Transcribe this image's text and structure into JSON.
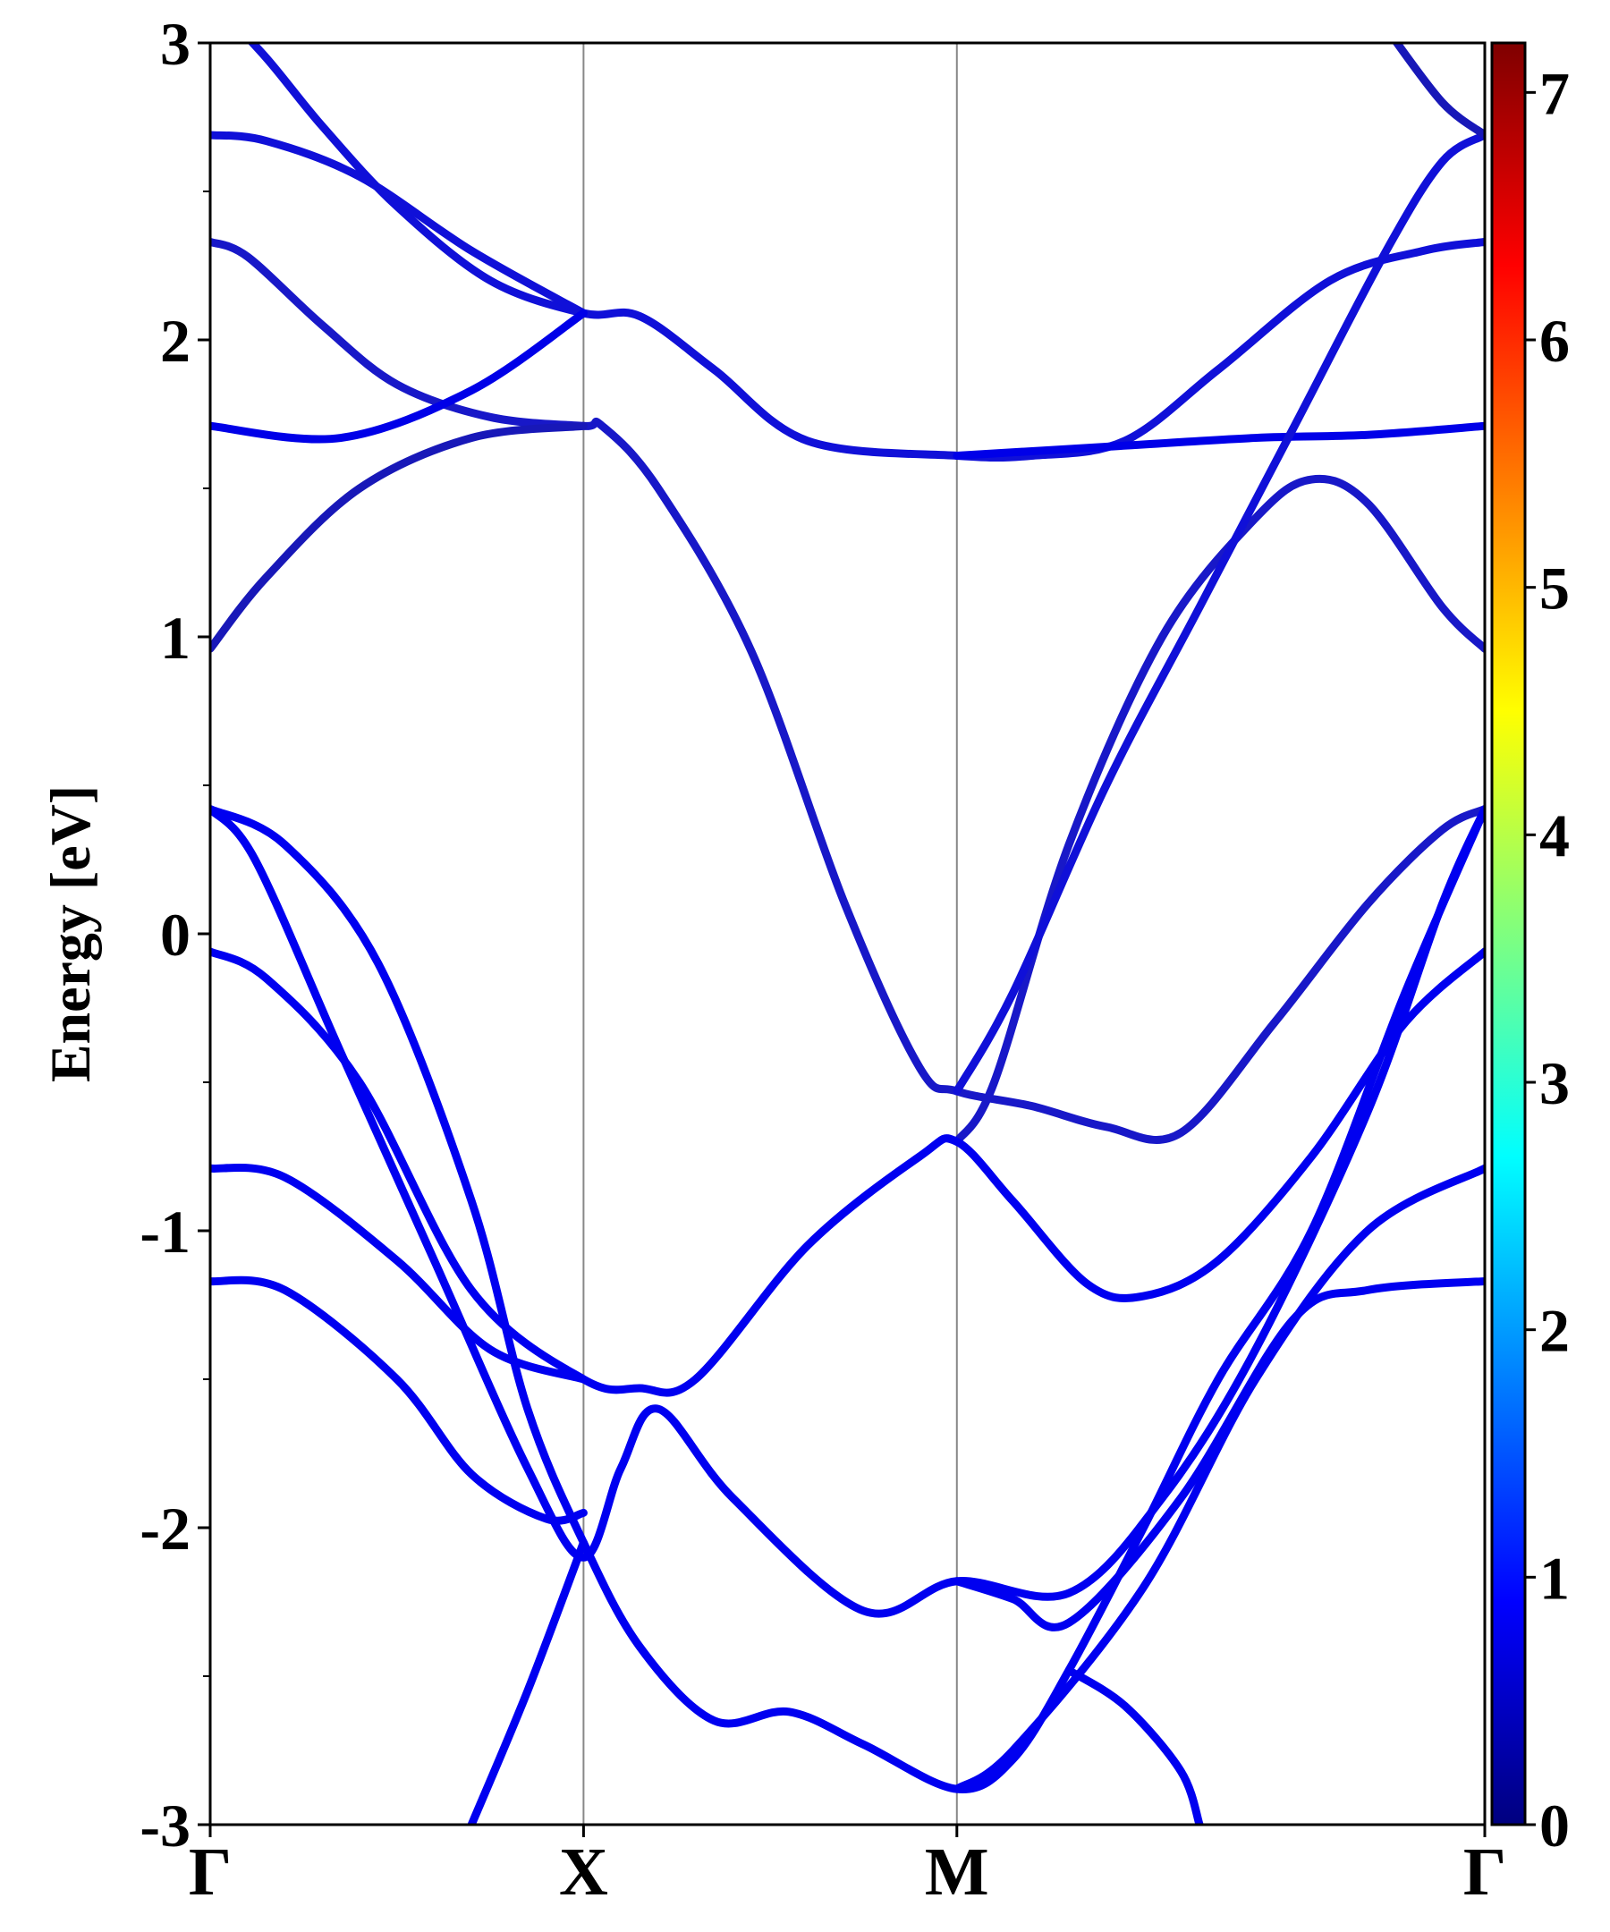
{
  "chart_data": {
    "type": "line",
    "title": "",
    "ylabel": "Energy [eV]",
    "xlabel": "",
    "ylim": [
      -3,
      3
    ],
    "yticks": [
      -3,
      -2,
      -1,
      0,
      1,
      2,
      3
    ],
    "ytick_labels": [
      "-3",
      "-2",
      "-1",
      "0",
      "1",
      "2",
      "3"
    ],
    "k_points": [
      {
        "label": "Γ",
        "x": 0
      },
      {
        "label": "X",
        "x": 1
      },
      {
        "label": "M",
        "x": 2
      },
      {
        "label": "Γ",
        "x": 3.414
      }
    ],
    "xlim": [
      0,
      3.414
    ],
    "grid": false,
    "vertical_lines_at_k_points": true,
    "colorbar": {
      "range": [
        0,
        7.2
      ],
      "ticks": [
        0,
        1,
        2,
        3,
        4,
        5,
        6,
        7
      ],
      "tick_labels": [
        "0",
        "1",
        "2",
        "3",
        "4",
        "5",
        "6",
        "7"
      ],
      "colormap": "jet",
      "colors": [
        "#00007f",
        "#0000ff",
        "#007fff",
        "#00ffff",
        "#7fff7f",
        "#ffff00",
        "#ff7f00",
        "#ff0000",
        "#7f0000"
      ]
    },
    "series": [
      {
        "color": "#1010d8",
        "points": [
          [
            0,
            3.15
          ],
          [
            0.15,
            2.95
          ],
          [
            0.3,
            2.72
          ],
          [
            0.5,
            2.45
          ],
          [
            0.75,
            2.2
          ],
          [
            1,
            2.09
          ],
          [
            1.15,
            2.08
          ],
          [
            1.35,
            1.9
          ],
          [
            1.6,
            1.66
          ],
          [
            2,
            1.61
          ],
          [
            2.2,
            1.61
          ],
          [
            2.45,
            1.66
          ],
          [
            2.7,
            1.9
          ],
          [
            3.0,
            2.2
          ],
          [
            3.25,
            2.3
          ],
          [
            3.414,
            2.33
          ]
        ]
      },
      {
        "color": "#1818c8",
        "points": [
          [
            0,
            2.33
          ],
          [
            0.1,
            2.28
          ],
          [
            0.3,
            2.05
          ],
          [
            0.5,
            1.85
          ],
          [
            0.75,
            1.74
          ],
          [
            1,
            1.71
          ],
          [
            1.05,
            1.71
          ],
          [
            1.2,
            1.5
          ],
          [
            1.45,
            0.95
          ],
          [
            1.7,
            0.1
          ],
          [
            1.9,
            -0.45
          ],
          [
            2,
            -0.53
          ],
          [
            2.2,
            -0.58
          ],
          [
            2.4,
            -0.65
          ],
          [
            2.6,
            -0.67
          ],
          [
            2.85,
            -0.3
          ],
          [
            3.1,
            0.1
          ],
          [
            3.3,
            0.35
          ],
          [
            3.414,
            0.42
          ]
        ]
      },
      {
        "color": "#1010d8",
        "points": [
          [
            0,
            2.69
          ],
          [
            0.15,
            2.67
          ],
          [
            0.4,
            2.55
          ],
          [
            0.7,
            2.3
          ],
          [
            1,
            2.09
          ]
        ]
      },
      {
        "color": "#0000e8",
        "points": [
          [
            0,
            1.71
          ],
          [
            0.35,
            1.67
          ],
          [
            0.7,
            1.83
          ],
          [
            1,
            2.09
          ]
        ]
      },
      {
        "color": "#1818b8",
        "points": [
          [
            0,
            0.96
          ],
          [
            0.15,
            1.2
          ],
          [
            0.4,
            1.5
          ],
          [
            0.7,
            1.67
          ],
          [
            1,
            1.71
          ]
        ]
      },
      {
        "color": "#0000e8",
        "points": [
          [
            2,
            1.61
          ],
          [
            2.4,
            1.64
          ],
          [
            2.8,
            1.67
          ],
          [
            3.1,
            1.68
          ],
          [
            3.414,
            1.71
          ]
        ]
      },
      {
        "color": "#1818c8",
        "points": [
          [
            2,
            -0.7
          ],
          [
            2.1,
            -0.5
          ],
          [
            2.3,
            0.3
          ],
          [
            2.55,
            1.0
          ],
          [
            2.8,
            1.4
          ],
          [
            2.95,
            1.53
          ],
          [
            3.1,
            1.45
          ],
          [
            3.3,
            1.1
          ],
          [
            3.414,
            0.96
          ]
        ]
      },
      {
        "color": "#1010d8",
        "points": [
          [
            2,
            -0.53
          ],
          [
            2.15,
            -0.2
          ],
          [
            2.4,
            0.5
          ],
          [
            2.65,
            1.1
          ],
          [
            2.9,
            1.7
          ],
          [
            3.15,
            2.3
          ],
          [
            3.3,
            2.6
          ],
          [
            3.414,
            2.69
          ]
        ]
      },
      {
        "color": "#1818b8",
        "points": [
          [
            3.414,
            2.69
          ],
          [
            3.3,
            2.8
          ],
          [
            3.15,
            3.05
          ]
        ]
      },
      {
        "color": "#0000f0",
        "points": [
          [
            0,
            0.42
          ],
          [
            0.2,
            0.3
          ],
          [
            0.45,
            -0.1
          ],
          [
            0.7,
            -0.9
          ],
          [
            0.85,
            -1.6
          ],
          [
            1,
            -2.05
          ],
          [
            1.15,
            -2.4
          ],
          [
            1.35,
            -2.65
          ],
          [
            1.55,
            -2.62
          ],
          [
            1.75,
            -2.73
          ],
          [
            2,
            -2.88
          ],
          [
            2.15,
            -2.78
          ],
          [
            2.3,
            -2.48
          ],
          [
            2.5,
            -2.0
          ],
          [
            2.7,
            -1.5
          ],
          [
            2.95,
            -1.0
          ],
          [
            3.2,
            -0.2
          ],
          [
            3.414,
            0.42
          ]
        ]
      },
      {
        "color": "#0000f0",
        "points": [
          [
            0,
            0.42
          ],
          [
            0.12,
            0.25
          ],
          [
            0.35,
            -0.4
          ],
          [
            0.6,
            -1.1
          ],
          [
            0.85,
            -1.8
          ],
          [
            1,
            -2.1
          ],
          [
            1.1,
            -1.8
          ],
          [
            1.2,
            -1.6
          ],
          [
            1.4,
            -1.9
          ],
          [
            1.75,
            -2.28
          ],
          [
            2,
            -2.18
          ],
          [
            2.3,
            -2.22
          ],
          [
            2.55,
            -1.9
          ],
          [
            2.8,
            -1.4
          ],
          [
            3.1,
            -0.6
          ],
          [
            3.3,
            0.1
          ],
          [
            3.414,
            0.42
          ]
        ]
      },
      {
        "color": "#0000f0",
        "points": [
          [
            0,
            -0.06
          ],
          [
            0.15,
            -0.15
          ],
          [
            0.4,
            -0.5
          ],
          [
            0.7,
            -1.2
          ],
          [
            1,
            -1.5
          ],
          [
            1.15,
            -1.53
          ],
          [
            1.3,
            -1.5
          ],
          [
            1.6,
            -1.05
          ],
          [
            1.9,
            -0.75
          ],
          [
            2,
            -0.7
          ],
          [
            2.15,
            -0.9
          ],
          [
            2.35,
            -1.18
          ],
          [
            2.5,
            -1.22
          ],
          [
            2.7,
            -1.1
          ],
          [
            2.95,
            -0.75
          ],
          [
            3.2,
            -0.3
          ],
          [
            3.414,
            -0.06
          ]
        ]
      },
      {
        "color": "#0000f0",
        "points": [
          [
            0,
            -0.79
          ],
          [
            0.2,
            -0.82
          ],
          [
            0.5,
            -1.1
          ],
          [
            0.75,
            -1.4
          ],
          [
            1,
            -1.5
          ]
        ]
      },
      {
        "color": "#0000f0",
        "points": [
          [
            0,
            -1.17
          ],
          [
            0.2,
            -1.2
          ],
          [
            0.5,
            -1.5
          ],
          [
            0.7,
            -1.82
          ],
          [
            0.9,
            -1.97
          ],
          [
            1,
            -1.95
          ]
        ]
      },
      {
        "color": "#0000f0",
        "points": [
          [
            0.7,
            -3.0
          ],
          [
            0.85,
            -2.55
          ],
          [
            1,
            -2.05
          ]
        ]
      },
      {
        "color": "#0000f0",
        "points": [
          [
            2,
            -2.18
          ],
          [
            2.15,
            -2.24
          ],
          [
            2.3,
            -2.32
          ],
          [
            2.6,
            -1.9
          ],
          [
            2.9,
            -1.3
          ],
          [
            3.1,
            -1.2
          ],
          [
            3.414,
            -1.17
          ]
        ]
      },
      {
        "color": "#0000f0",
        "points": [
          [
            2,
            -2.88
          ],
          [
            2.15,
            -2.75
          ],
          [
            2.5,
            -2.2
          ],
          [
            2.8,
            -1.5
          ],
          [
            3.1,
            -1.0
          ],
          [
            3.414,
            -0.79
          ]
        ]
      },
      {
        "color": "#0000f0",
        "points": [
          [
            2.3,
            -2.48
          ],
          [
            2.45,
            -2.6
          ],
          [
            2.6,
            -2.82
          ],
          [
            2.65,
            -3.0
          ]
        ]
      }
    ]
  }
}
